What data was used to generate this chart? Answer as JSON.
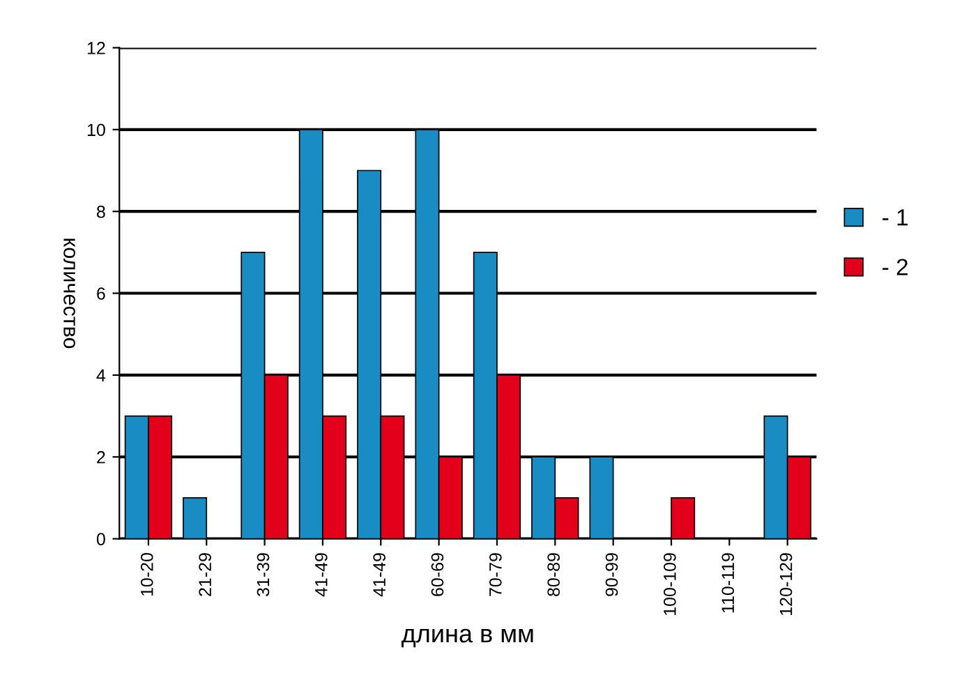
{
  "chart_data": {
    "type": "bar",
    "xlabel": "длина в мм",
    "ylabel": "количество",
    "categories": [
      "10-20",
      "21-29",
      "31-39",
      "41-49",
      "41-49",
      "60-69",
      "70-79",
      "80-89",
      "90-99",
      "100-109",
      "110-119",
      "120-129"
    ],
    "series": [
      {
        "name": "- 1",
        "color": "#1a8cc4",
        "values": [
          3,
          1,
          7,
          10,
          9,
          10,
          7,
          2,
          2,
          0,
          0,
          3
        ]
      },
      {
        "name": "- 2",
        "color": "#e3001b",
        "values": [
          3,
          0,
          4,
          3,
          3,
          2,
          4,
          1,
          0,
          1,
          0,
          2
        ]
      }
    ],
    "ylim": [
      0,
      12
    ],
    "yticks": [
      0,
      2,
      4,
      6,
      8,
      10,
      12
    ],
    "grid": "y",
    "legend": "right"
  }
}
